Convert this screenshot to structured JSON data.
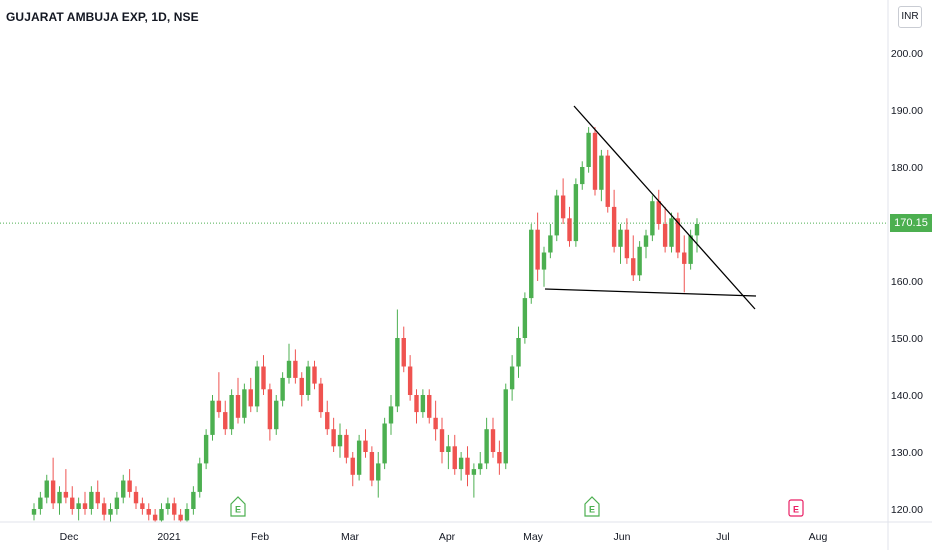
{
  "header": {
    "title": "GUJARAT AMBUJA EXP, 1D, NSE",
    "currency": "INR"
  },
  "last_price": "170.15",
  "colors": {
    "up": "#4caf50",
    "down": "#ef5350",
    "last_line": "#4caf50",
    "trendline": "#000000",
    "earnings_up": "#4caf50",
    "earnings_down": "#e91e63"
  },
  "chart_data": {
    "type": "candlestick",
    "y_ticks": [
      "120.00",
      "130.00",
      "140.00",
      "150.00",
      "160.00",
      "170.00",
      "180.00",
      "190.00",
      "200.00"
    ],
    "y_range": [
      118,
      207
    ],
    "x_ticks": [
      "Dec",
      "2021",
      "Feb",
      "Mar",
      "Apr",
      "May",
      "Jun",
      "Jul",
      "Aug"
    ],
    "last_price": 170.15,
    "markers": [
      {
        "label": "E",
        "near": "Feb",
        "color": "green"
      },
      {
        "label": "E",
        "near": "May",
        "color": "green"
      },
      {
        "label": "E",
        "near": "Jul",
        "color": "pink"
      }
    ],
    "candles": [
      [
        119,
        121,
        118,
        120
      ],
      [
        120,
        123,
        119,
        122
      ],
      [
        122,
        126,
        121,
        125
      ],
      [
        125,
        129,
        120,
        121
      ],
      [
        121,
        124,
        119,
        123
      ],
      [
        123,
        127,
        121,
        122
      ],
      [
        122,
        124,
        119,
        120
      ],
      [
        120,
        122,
        118,
        121
      ],
      [
        121,
        123,
        119,
        120
      ],
      [
        120,
        124,
        119,
        123
      ],
      [
        123,
        125,
        120,
        121
      ],
      [
        121,
        122,
        118,
        119
      ],
      [
        119,
        121,
        117,
        120
      ],
      [
        120,
        123,
        119,
        122
      ],
      [
        122,
        126,
        121,
        125
      ],
      [
        125,
        127,
        122,
        123
      ],
      [
        123,
        124,
        120,
        121
      ],
      [
        121,
        122,
        119,
        120
      ],
      [
        120,
        121,
        118,
        119
      ],
      [
        119,
        120,
        117,
        118
      ],
      [
        118,
        121,
        117,
        120
      ],
      [
        120,
        122,
        119,
        121
      ],
      [
        121,
        122,
        118,
        119
      ],
      [
        119,
        120,
        117,
        118
      ],
      [
        118,
        121,
        117,
        120
      ],
      [
        120,
        124,
        119,
        123
      ],
      [
        123,
        129,
        122,
        128
      ],
      [
        128,
        134,
        127,
        133
      ],
      [
        133,
        140,
        132,
        139
      ],
      [
        139,
        144,
        136,
        137
      ],
      [
        137,
        139,
        133,
        134
      ],
      [
        134,
        141,
        133,
        140
      ],
      [
        140,
        143,
        135,
        136
      ],
      [
        136,
        142,
        135,
        141
      ],
      [
        141,
        143,
        137,
        138
      ],
      [
        138,
        146,
        137,
        145
      ],
      [
        145,
        147,
        140,
        141
      ],
      [
        141,
        142,
        132,
        134
      ],
      [
        134,
        140,
        133,
        139
      ],
      [
        139,
        144,
        138,
        143
      ],
      [
        143,
        149,
        142,
        146
      ],
      [
        146,
        148,
        142,
        143
      ],
      [
        143,
        144,
        138,
        140
      ],
      [
        140,
        146,
        139,
        145
      ],
      [
        145,
        146,
        141,
        142
      ],
      [
        142,
        143,
        136,
        137
      ],
      [
        137,
        139,
        133,
        134
      ],
      [
        134,
        136,
        130,
        131
      ],
      [
        131,
        135,
        129,
        133
      ],
      [
        133,
        134,
        128,
        129
      ],
      [
        129,
        130,
        124,
        126
      ],
      [
        126,
        133,
        125,
        132
      ],
      [
        132,
        134,
        129,
        130
      ],
      [
        130,
        131,
        124,
        125
      ],
      [
        125,
        130,
        122,
        128
      ],
      [
        128,
        136,
        127,
        135
      ],
      [
        135,
        140,
        133,
        138
      ],
      [
        138,
        155,
        137,
        150
      ],
      [
        150,
        152,
        144,
        145
      ],
      [
        145,
        147,
        139,
        140
      ],
      [
        140,
        141,
        135,
        137
      ],
      [
        137,
        141,
        136,
        140
      ],
      [
        140,
        141,
        135,
        136
      ],
      [
        136,
        139,
        132,
        134
      ],
      [
        134,
        136,
        128,
        130
      ],
      [
        130,
        133,
        127,
        131
      ],
      [
        131,
        133,
        126,
        127
      ],
      [
        127,
        130,
        125,
        129
      ],
      [
        129,
        131,
        124,
        126
      ],
      [
        126,
        128,
        122,
        127
      ],
      [
        127,
        130,
        126,
        128
      ],
      [
        128,
        136,
        127,
        134
      ],
      [
        134,
        136,
        129,
        130
      ],
      [
        130,
        132,
        126,
        128
      ],
      [
        128,
        142,
        127,
        141
      ],
      [
        141,
        147,
        139,
        145
      ],
      [
        145,
        152,
        143,
        150
      ],
      [
        150,
        158,
        149,
        157
      ],
      [
        157,
        170,
        156,
        169
      ],
      [
        169,
        172,
        160,
        162
      ],
      [
        162,
        166,
        159,
        165
      ],
      [
        165,
        170,
        164,
        168
      ],
      [
        168,
        176,
        167,
        175
      ],
      [
        175,
        178,
        170,
        171
      ],
      [
        171,
        173,
        166,
        167
      ],
      [
        167,
        178,
        166,
        177
      ],
      [
        177,
        181,
        176,
        180
      ],
      [
        180,
        187,
        179,
        186
      ],
      [
        186,
        187,
        175,
        176
      ],
      [
        176,
        183,
        174,
        182
      ],
      [
        182,
        183,
        172,
        173
      ],
      [
        173,
        176,
        165,
        166
      ],
      [
        166,
        170,
        163,
        169
      ],
      [
        169,
        171,
        163,
        164
      ],
      [
        164,
        168,
        160,
        161
      ],
      [
        161,
        167,
        160,
        166
      ],
      [
        166,
        169,
        164,
        168
      ],
      [
        168,
        175,
        167,
        174
      ],
      [
        174,
        176,
        169,
        170
      ],
      [
        170,
        173,
        165,
        166
      ],
      [
        166,
        172,
        165,
        171
      ],
      [
        171,
        172,
        164,
        165
      ],
      [
        165,
        168,
        158,
        163
      ],
      [
        163,
        169,
        162,
        168
      ],
      [
        168,
        171,
        165,
        170
      ]
    ]
  }
}
